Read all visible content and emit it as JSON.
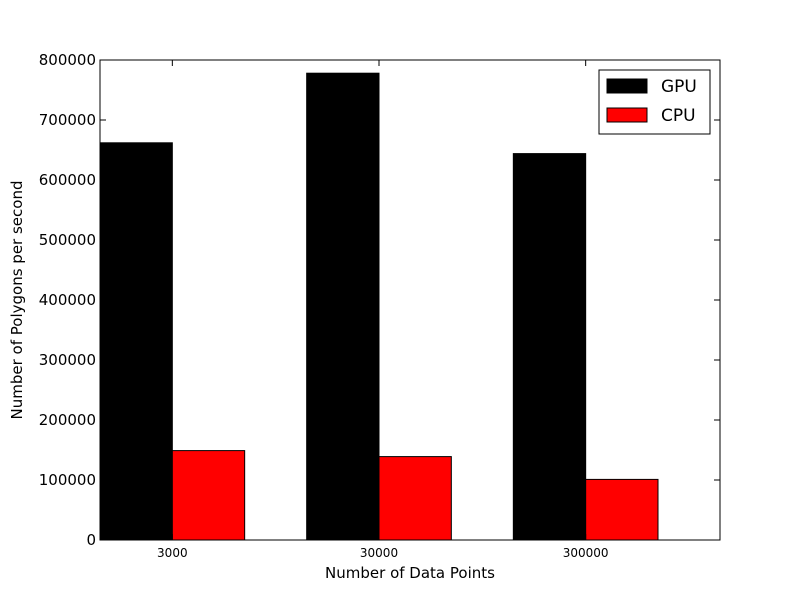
{
  "chart_data": {
    "type": "bar",
    "title": "",
    "xlabel": "Number of Data Points",
    "ylabel": "Number of Polygons per second",
    "categories": [
      "3000",
      "30000",
      "300000"
    ],
    "series": [
      {
        "name": "GPU",
        "color": "#000000",
        "values": [
          662000,
          778000,
          644000
        ]
      },
      {
        "name": "CPU",
        "color": "#ff0000",
        "values": [
          149000,
          139000,
          101000
        ]
      }
    ],
    "ylim": [
      0,
      800000
    ],
    "yticks": [
      0,
      100000,
      200000,
      300000,
      400000,
      500000,
      600000,
      700000,
      800000
    ],
    "ytick_labels": [
      "0",
      "100000",
      "200000",
      "300000",
      "400000",
      "500000",
      "600000",
      "700000",
      "800000"
    ],
    "grid": false,
    "legend_position": "top-right"
  }
}
